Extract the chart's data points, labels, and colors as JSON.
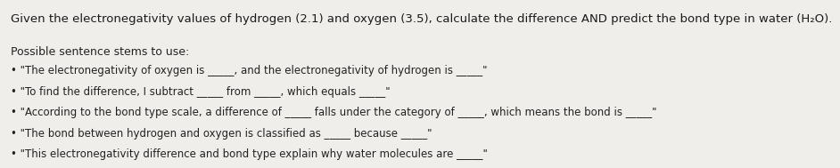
{
  "title": "Given the electronegativity values of hydrogen (2.1) and oxygen (3.5), calculate the difference AND predict the bond type in water (H₂O).",
  "section_label": "Possible sentence stems to use:",
  "bullets": [
    "• \"The electronegativity of oxygen is _____, and the electronegativity of hydrogen is _____\"",
    "• \"To find the difference, I subtract _____ from _____, which equals _____\"",
    "• \"According to the bond type scale, a difference of _____ falls under the category of _____, which means the bond is _____\"",
    "• \"The bond between hydrogen and oxygen is classified as _____ because _____\"",
    "• \"This electronegativity difference and bond type explain why water molecules are _____\""
  ],
  "bg_color": "#f0eeea",
  "title_fontsize": 9.5,
  "section_fontsize": 9.0,
  "bullet_fontsize": 8.5,
  "title_color": "#1a1a1a",
  "text_color": "#222222"
}
